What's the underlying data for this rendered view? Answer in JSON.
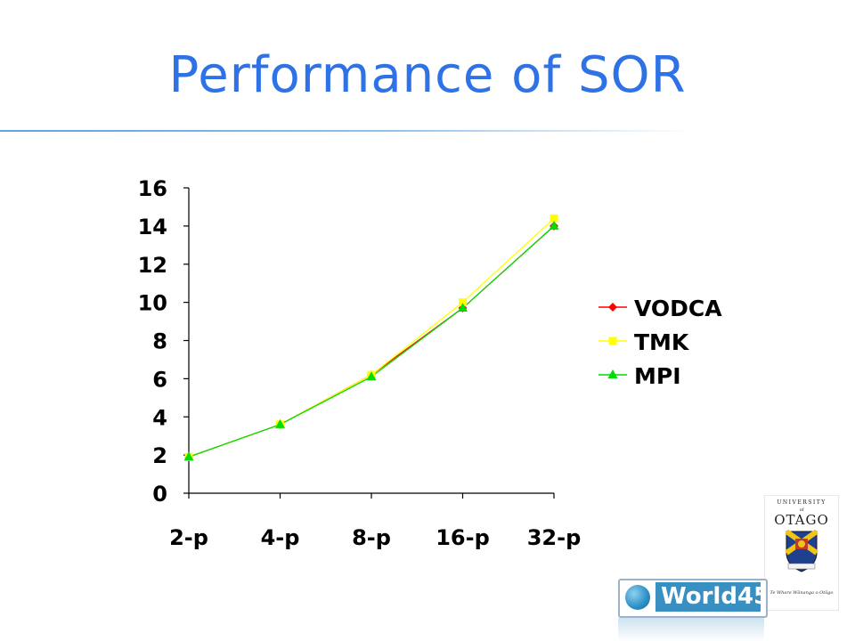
{
  "slide": {
    "title": "Performance of SOR"
  },
  "chart_data": {
    "type": "line",
    "categories": [
      "2-p",
      "4-p",
      "8-p",
      "16-p",
      "32-p"
    ],
    "series": [
      {
        "name": "VODCA",
        "values": [
          1.9,
          3.6,
          6.2,
          9.7,
          14.0
        ],
        "color": "#ff0000",
        "marker": "diamond"
      },
      {
        "name": "TMK",
        "values": [
          1.9,
          3.6,
          6.2,
          10.0,
          14.4
        ],
        "color": "#ffff00",
        "marker": "square"
      },
      {
        "name": "MPI",
        "values": [
          1.9,
          3.6,
          6.1,
          9.7,
          14.0
        ],
        "color": "#00dd00",
        "marker": "triangle"
      }
    ],
    "yticks": [
      0,
      2,
      4,
      6,
      8,
      10,
      12,
      14,
      16
    ],
    "ylim": [
      0,
      16
    ],
    "grid": false,
    "legend_position": "right",
    "title": "",
    "xlabel": "",
    "ylabel": ""
  },
  "logos": {
    "university": {
      "line1": "UNIVERSITY",
      "line2": "of",
      "name": "OTAGO",
      "tagline": "Te Whare Wānanga o Otāgo"
    },
    "badge": {
      "text": "World45"
    }
  }
}
